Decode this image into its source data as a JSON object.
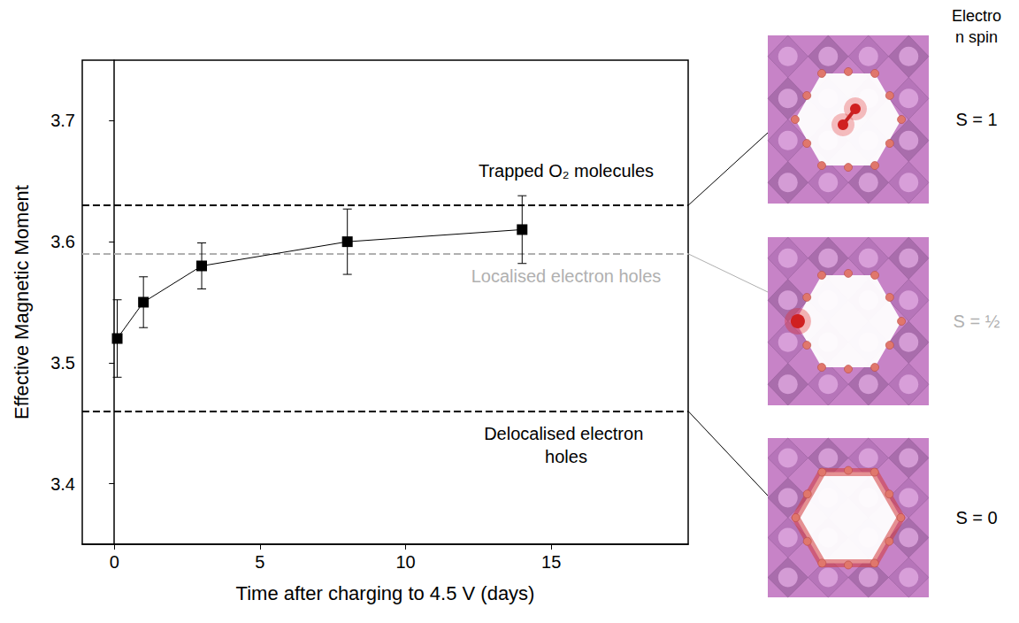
{
  "chart_data": {
    "type": "scatter",
    "xlabel": "Time after charging to 4.5 V (days)",
    "ylabel": "Effective Magnetic Moment",
    "x": [
      0.1,
      1,
      3,
      8,
      14
    ],
    "values": [
      3.52,
      3.55,
      3.58,
      3.6,
      3.61
    ],
    "errors": [
      0.032,
      0.021,
      0.019,
      0.027,
      0.028
    ],
    "color": "#000000",
    "marker": "square",
    "line_style": "solid",
    "xlim": [
      -1.1,
      19.7
    ],
    "xticks": [
      0,
      5,
      10,
      15
    ],
    "ylim": [
      3.35,
      3.75
    ],
    "yticks": [
      3.4,
      3.5,
      3.6,
      3.7
    ],
    "grid": false,
    "spin_title": "Electron spin",
    "reference_lines": [
      {
        "value": 3.63,
        "label": "Trapped O₂ molecules",
        "spin": "S = 1",
        "color": "#000000",
        "line_style": "dashed"
      },
      {
        "value": 3.59,
        "label": "Localised electron holes",
        "spin": "S = ½",
        "color": "#b0b0b0",
        "line_style": "dashed"
      },
      {
        "value": 3.46,
        "label": "Delocalised electron holes",
        "spin": "S = 0",
        "color": "#000000",
        "line_style": "dashed"
      }
    ]
  }
}
